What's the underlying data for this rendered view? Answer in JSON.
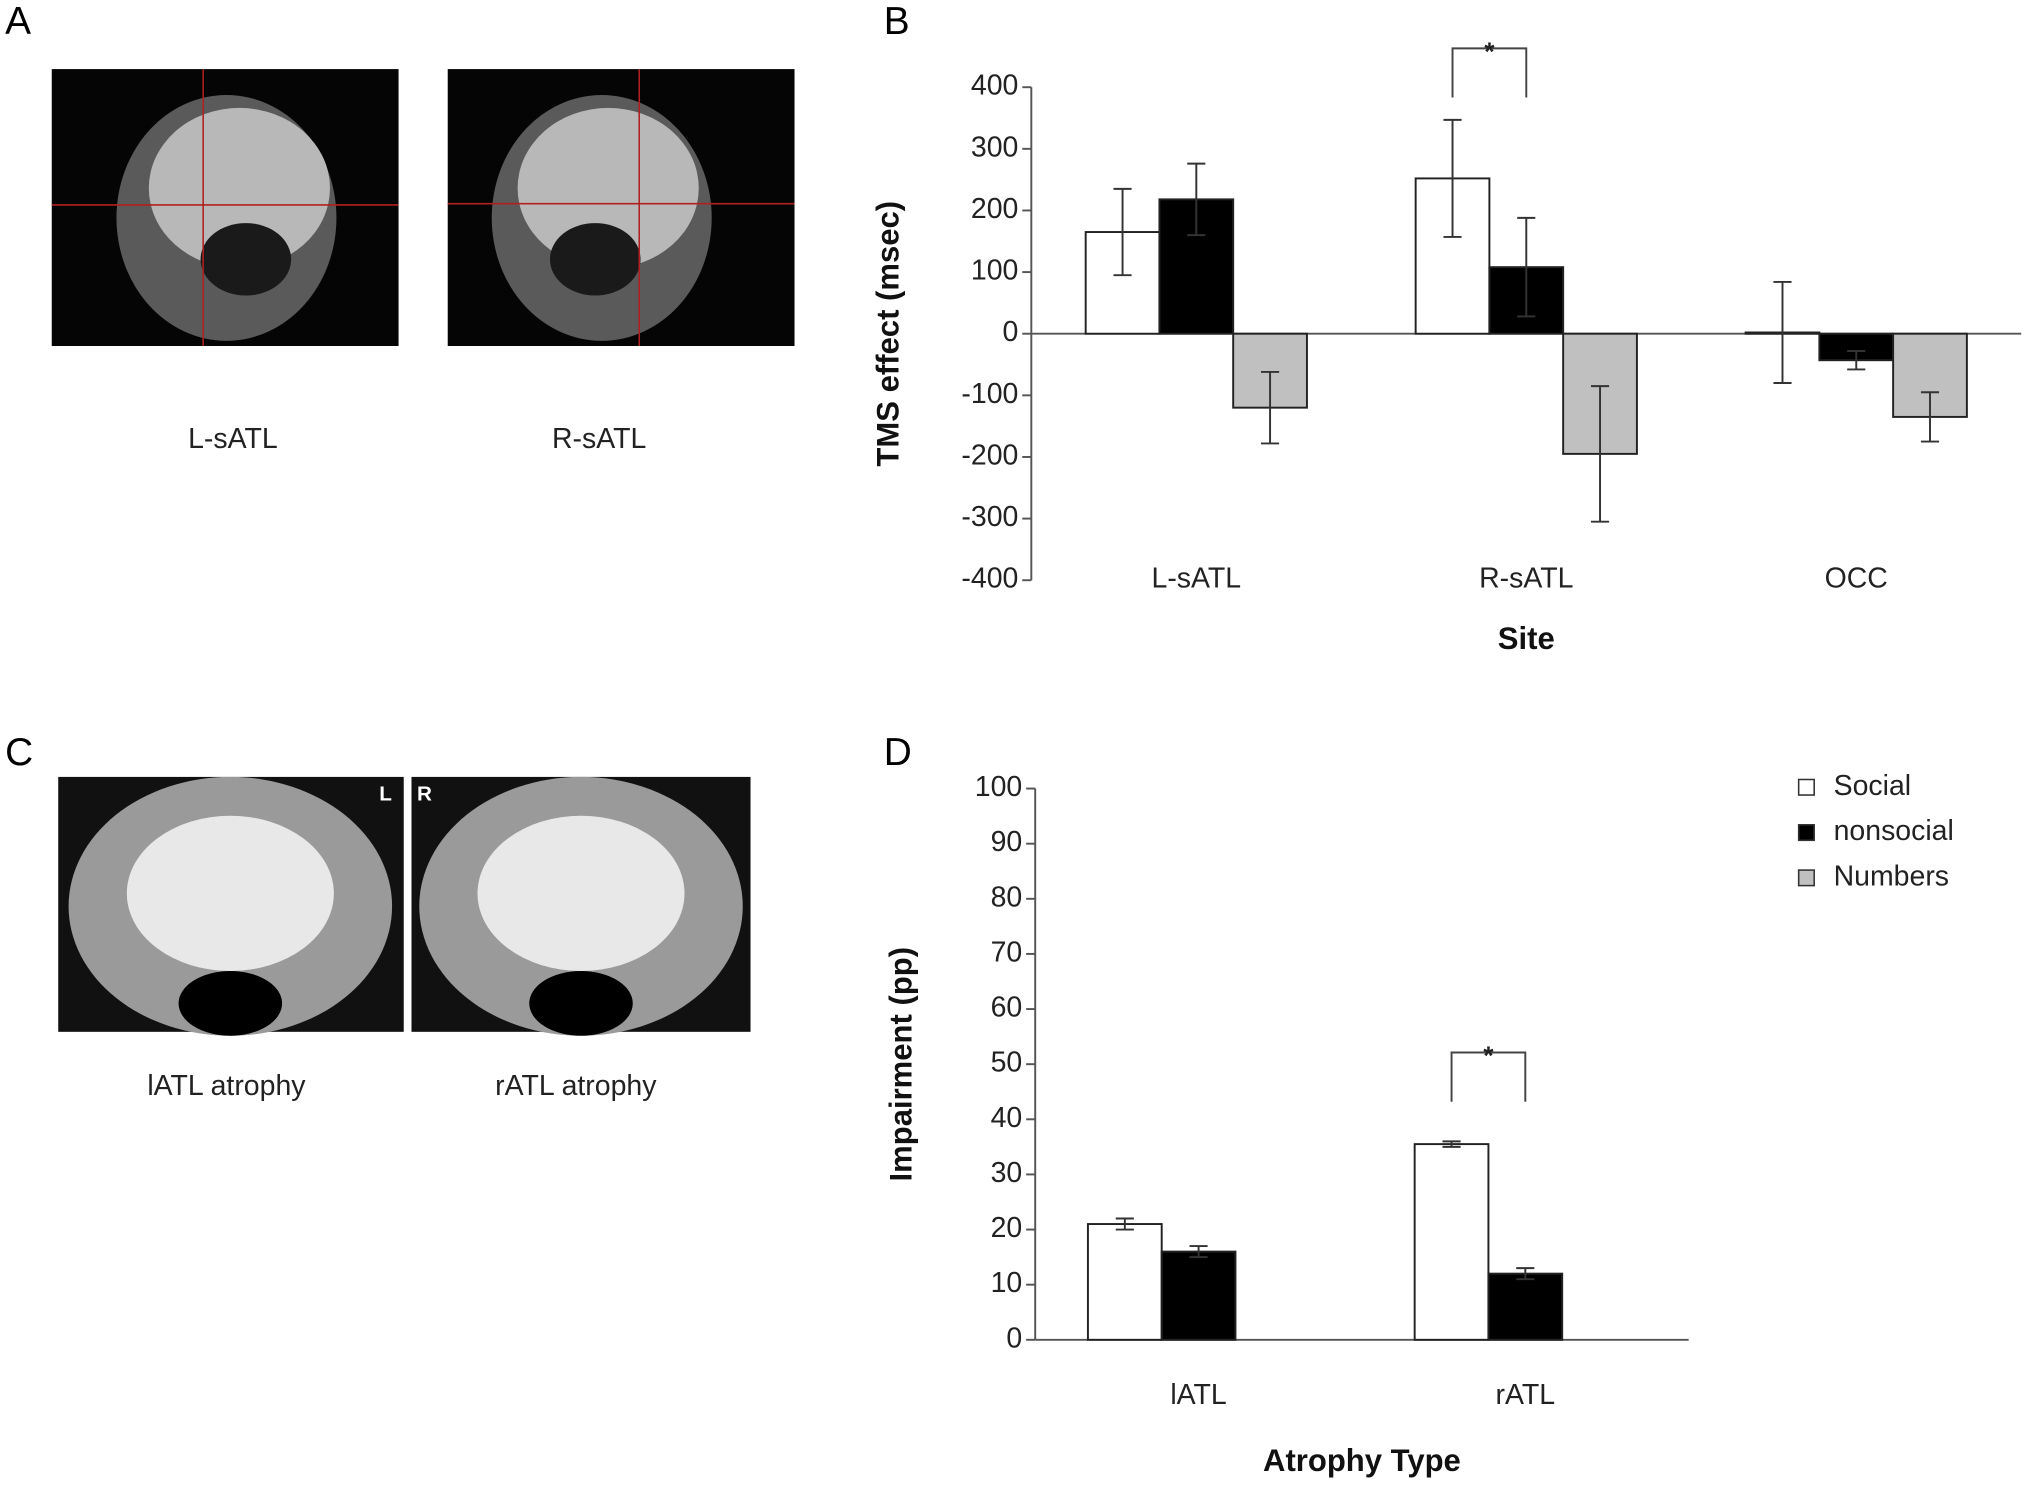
{
  "panels": {
    "a": {
      "letter": "A",
      "captions": [
        "L-sATL",
        "R-sATL"
      ]
    },
    "b": {
      "letter": "B"
    },
    "c": {
      "letter": "C",
      "captions": [
        "lATL atrophy",
        "rATL atrophy"
      ],
      "image_marks": [
        "L",
        "R"
      ]
    },
    "d": {
      "letter": "D"
    }
  },
  "chart_data": [
    {
      "type": "bar",
      "y_label": "TMS effect (msec)",
      "x_label": "Site",
      "categories": [
        "L-sATL",
        "R-sATL",
        "OCC"
      ],
      "series": [
        {
          "name": "Social",
          "color": "#ffffff",
          "values": [
            165,
            252,
            2
          ],
          "errors": [
            70,
            95,
            82
          ]
        },
        {
          "name": "nonsocial",
          "color": "#000000",
          "values": [
            218,
            108,
            -43
          ],
          "errors": [
            58,
            80,
            15
          ]
        },
        {
          "name": "Numbers",
          "color": "#c0c0c0",
          "values": [
            -120,
            -195,
            -135
          ],
          "errors": [
            58,
            110,
            40
          ]
        }
      ],
      "ylim": [
        -400,
        400
      ],
      "yticks": [
        -400,
        -300,
        -200,
        -100,
        0,
        100,
        200,
        300,
        400
      ],
      "annotations": [
        {
          "text": "*",
          "category": 1
        }
      ]
    },
    {
      "type": "bar",
      "y_label": "Impairment (pp)",
      "x_label": "Atrophy Type",
      "categories": [
        "lATL",
        "rATL"
      ],
      "series": [
        {
          "name": "Social",
          "color": "#ffffff",
          "values": [
            21,
            35.5
          ],
          "errors": [
            1,
            0.5
          ]
        },
        {
          "name": "nonsocial",
          "color": "#000000",
          "values": [
            16,
            12
          ],
          "errors": [
            1,
            1
          ]
        },
        {
          "name": "Numbers",
          "color": "#c0c0c0",
          "values": [
            null,
            null
          ],
          "errors": [
            null,
            null
          ]
        }
      ],
      "ylim": [
        0,
        100
      ],
      "yticks": [
        0,
        10,
        20,
        30,
        40,
        50,
        60,
        70,
        80,
        90,
        100
      ],
      "legend": "right",
      "annotations": [
        {
          "text": "*",
          "category": 1
        }
      ]
    }
  ]
}
